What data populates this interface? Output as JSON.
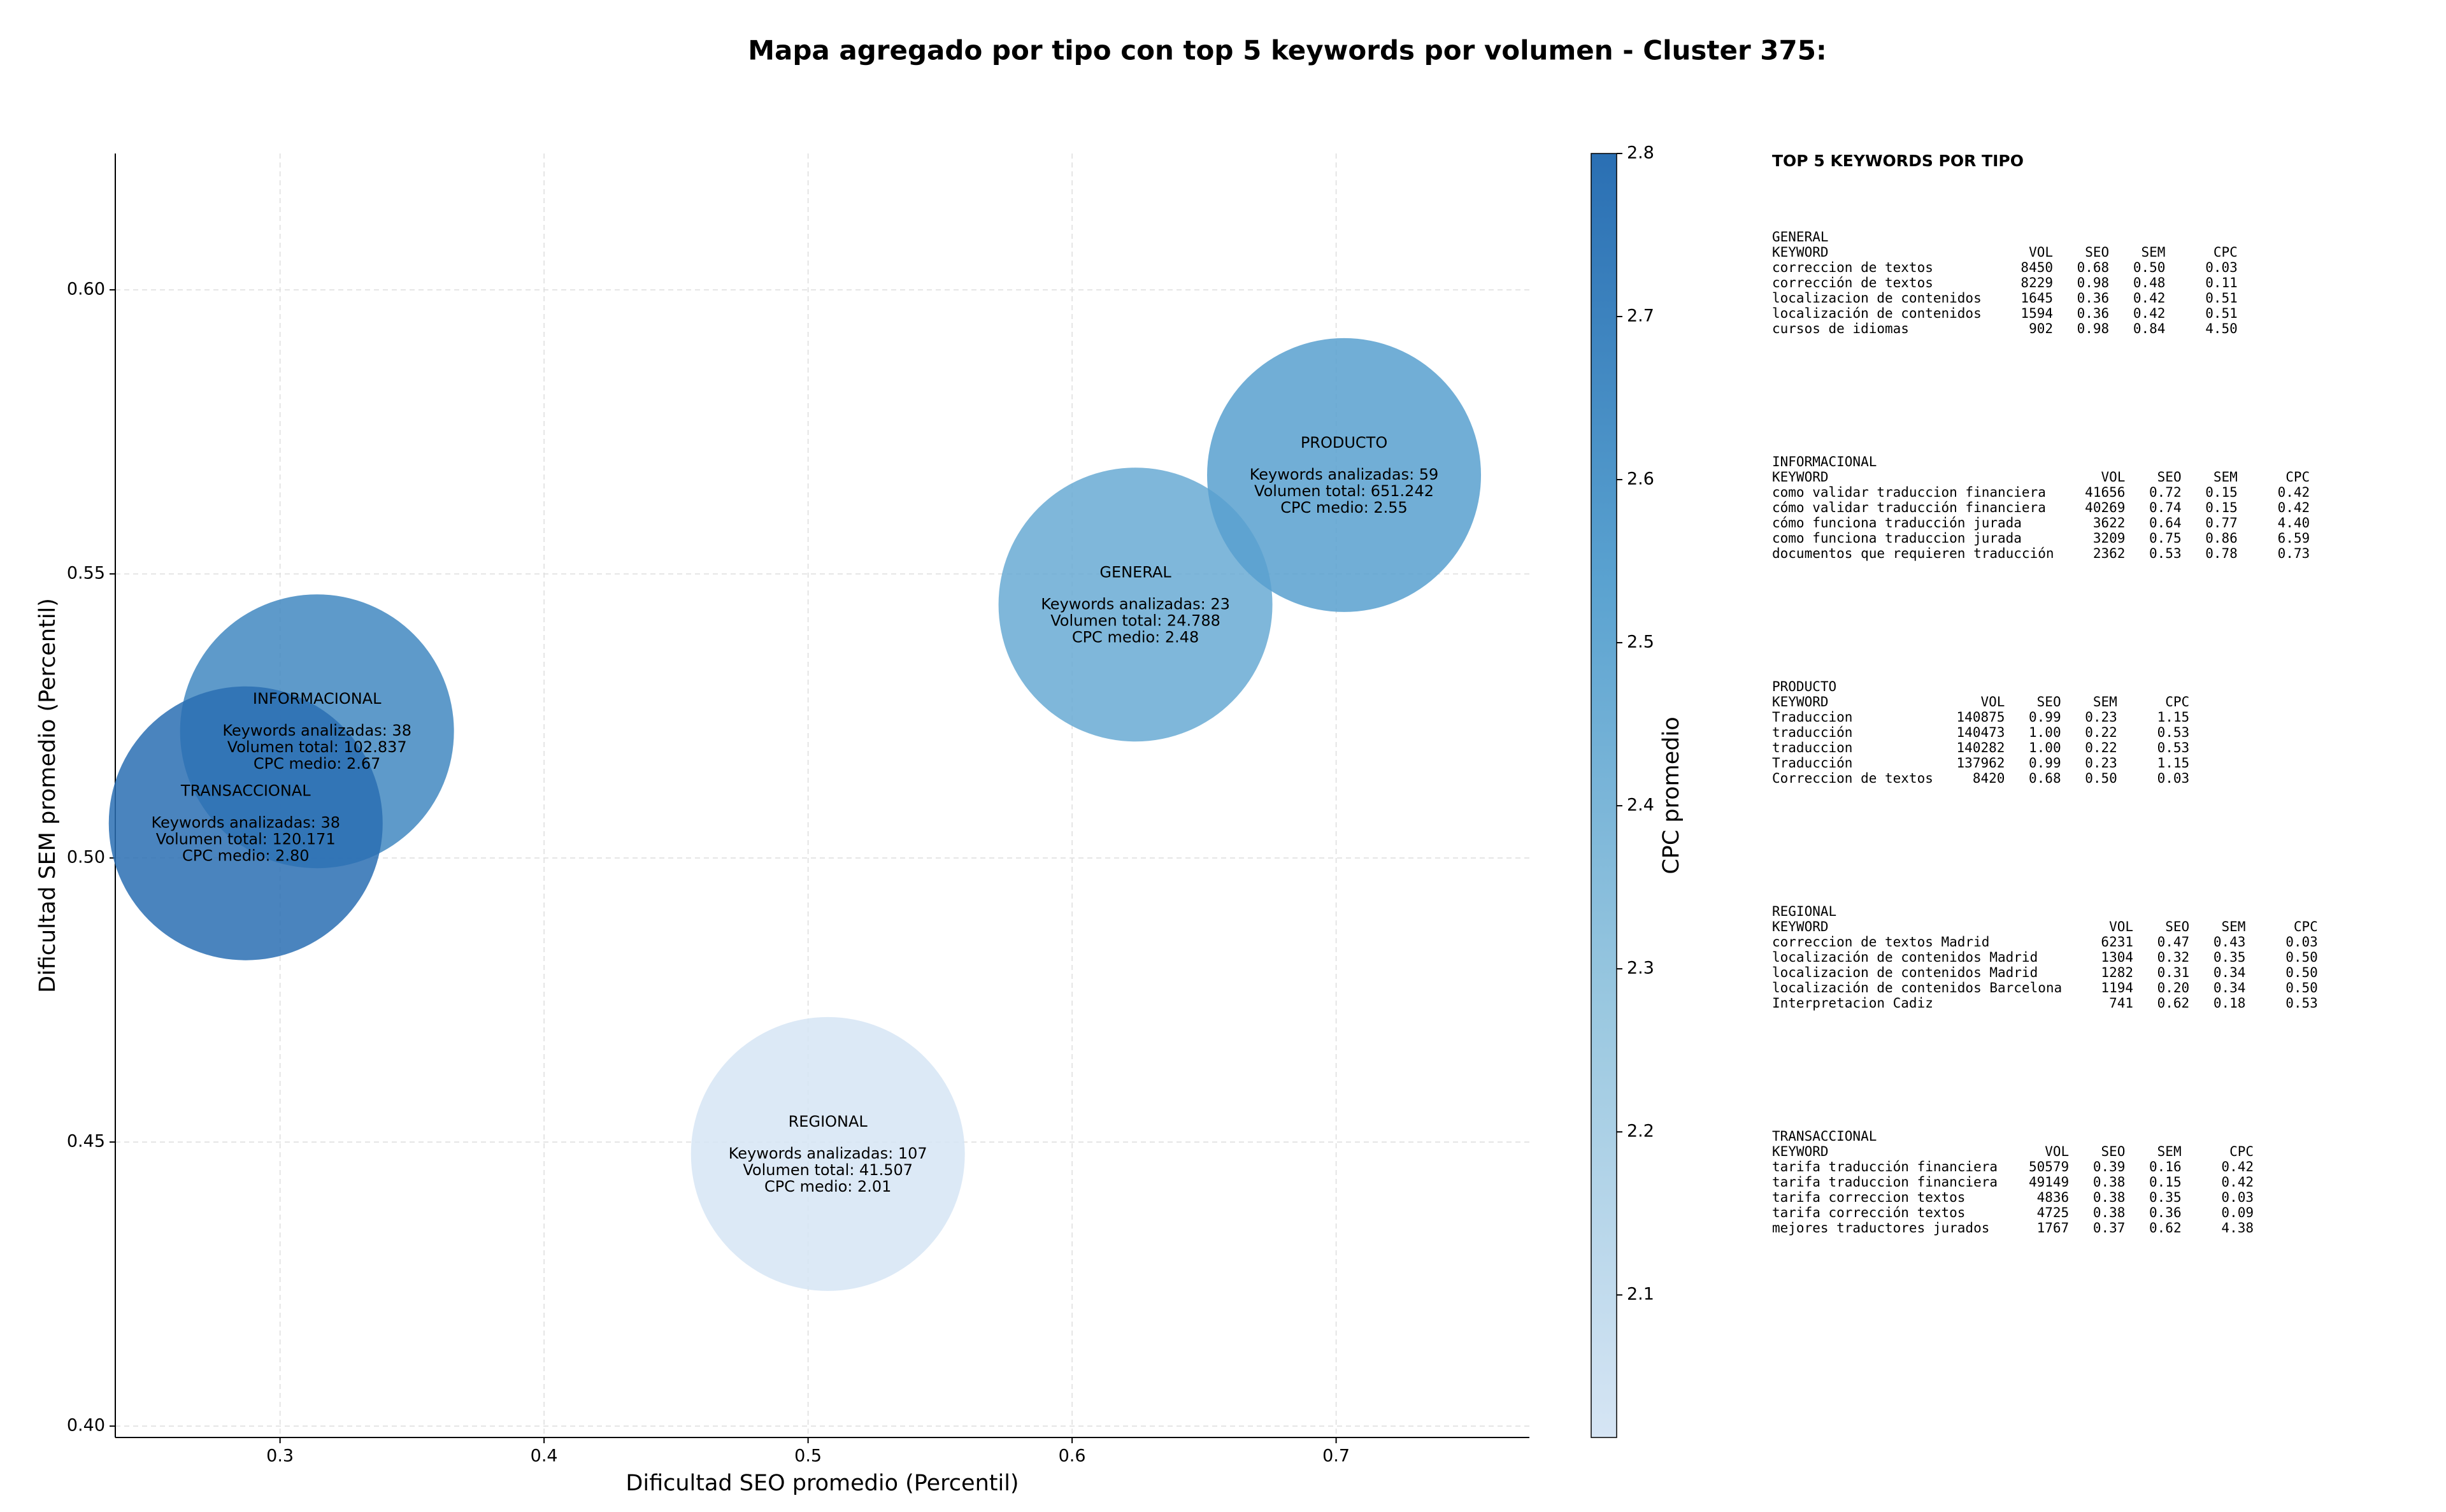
{
  "chart_data": {
    "type": "bubble",
    "title": "Mapa agregado por tipo con top 5 keywords por volumen - Cluster 375:",
    "xlabel": "Dificultad SEO promedio (Percentil)",
    "ylabel": "Dificultad SEM promedio (Percentil)",
    "xlim": [
      0.2376,
      0.7732
    ],
    "xticks": [
      0.3,
      0.4,
      0.5,
      0.6,
      0.7
    ],
    "ylim": [
      0.398,
      0.624
    ],
    "yticks": [
      {
        "value": 0.4,
        "label": "0.40"
      },
      {
        "value": 0.45,
        "label": "0.45"
      },
      {
        "value": 0.5,
        "label": "0.50"
      },
      {
        "value": 0.55,
        "label": "0.55"
      },
      {
        "value": 0.6,
        "label": "0.60"
      }
    ],
    "grid": true,
    "categories": [
      "REGIONAL",
      "GENERAL",
      "PRODUCTO",
      "INFORMACIONAL",
      "TRANSACCIONAL"
    ],
    "x": [
      0.5075,
      0.624,
      0.703,
      0.314,
      0.287
    ],
    "values": [
      0.4479,
      0.5446,
      0.5674,
      0.5223,
      0.5061
    ],
    "color_values": [
      2.01,
      2.48,
      2.55,
      2.67,
      2.8
    ],
    "details": [
      [
        "Keywords analizadas: 107",
        "Volumen total: 41.507",
        "CPC medio: 2.01"
      ],
      [
        "Keywords analizadas: 23",
        "Volumen total: 24.788",
        "CPC medio: 2.48"
      ],
      [
        "Keywords analizadas: 59",
        "Volumen total: 651.242",
        "CPC medio: 2.55"
      ],
      [
        "Keywords analizadas: 38",
        "Volumen total: 102.837",
        "CPC medio: 2.67"
      ],
      [
        "Keywords analizadas: 38",
        "Volumen total: 120.171",
        "CPC medio: 2.80"
      ]
    ],
    "colorbar": {
      "label": "CPC promedio",
      "lim": [
        2.0126,
        2.8
      ],
      "ticks": [
        2.1,
        2.2,
        2.3,
        2.4,
        2.5,
        2.6,
        2.7,
        2.8
      ],
      "colormap": [
        "#d6e5f4",
        "#9ac8e0",
        "#5aa2d0",
        "#2a6fb3"
      ]
    }
  },
  "keyword_panel": {
    "title": "TOP 5 KEYWORDS POR TIPO",
    "tables": [
      {
        "name": "GENERAL",
        "columns": [
          "KEYWORD",
          "VOL",
          "SEO",
          "SEM",
          "CPC"
        ],
        "rows": [
          [
            "correccion de textos",
            "8450",
            "0.68",
            "0.50",
            "0.03"
          ],
          [
            "corrección de textos",
            "8229",
            "0.98",
            "0.48",
            "0.11"
          ],
          [
            "localizacion de contenidos",
            "1645",
            "0.36",
            "0.42",
            "0.51"
          ],
          [
            "localización de contenidos",
            "1594",
            "0.36",
            "0.42",
            "0.51"
          ],
          [
            "cursos de idiomas",
            "902",
            "0.98",
            "0.84",
            "4.50"
          ]
        ]
      },
      {
        "name": "INFORMACIONAL",
        "columns": [
          "KEYWORD",
          "VOL",
          "SEO",
          "SEM",
          "CPC"
        ],
        "rows": [
          [
            "como validar traduccion financiera",
            "41656",
            "0.72",
            "0.15",
            "0.42"
          ],
          [
            "cómo validar traducción financiera",
            "40269",
            "0.74",
            "0.15",
            "0.42"
          ],
          [
            "cómo funciona traducción jurada",
            "3622",
            "0.64",
            "0.77",
            "4.40"
          ],
          [
            "como funciona traduccion jurada",
            "3209",
            "0.75",
            "0.86",
            "6.59"
          ],
          [
            "documentos que requieren traducción",
            "2362",
            "0.53",
            "0.78",
            "0.73"
          ]
        ]
      },
      {
        "name": "PRODUCTO",
        "columns": [
          "KEYWORD",
          "VOL",
          "SEO",
          "SEM",
          "CPC"
        ],
        "rows": [
          [
            "Traduccion",
            "140875",
            "0.99",
            "0.23",
            "1.15"
          ],
          [
            "traducción",
            "140473",
            "1.00",
            "0.22",
            "0.53"
          ],
          [
            "traduccion",
            "140282",
            "1.00",
            "0.22",
            "0.53"
          ],
          [
            "Traducción",
            "137962",
            "0.99",
            "0.23",
            "1.15"
          ],
          [
            "Correccion de textos",
            "8420",
            "0.68",
            "0.50",
            "0.03"
          ]
        ]
      },
      {
        "name": "REGIONAL",
        "columns": [
          "KEYWORD",
          "VOL",
          "SEO",
          "SEM",
          "CPC"
        ],
        "rows": [
          [
            "correccion de textos Madrid",
            "6231",
            "0.47",
            "0.43",
            "0.03"
          ],
          [
            "localización de contenidos Madrid",
            "1304",
            "0.32",
            "0.35",
            "0.50"
          ],
          [
            "localizacion de contenidos Madrid",
            "1282",
            "0.31",
            "0.34",
            "0.50"
          ],
          [
            "localización de contenidos Barcelona",
            "1194",
            "0.20",
            "0.34",
            "0.50"
          ],
          [
            "Interpretacion Cadiz",
            "741",
            "0.62",
            "0.18",
            "0.53"
          ]
        ]
      },
      {
        "name": "TRANSACCIONAL",
        "columns": [
          "KEYWORD",
          "VOL",
          "SEO",
          "SEM",
          "CPC"
        ],
        "rows": [
          [
            "tarifa traducción financiera",
            "50579",
            "0.39",
            "0.16",
            "0.42"
          ],
          [
            "tarifa traduccion financiera",
            "49149",
            "0.38",
            "0.15",
            "0.42"
          ],
          [
            "tarifa correccion textos",
            "4836",
            "0.38",
            "0.35",
            "0.03"
          ],
          [
            "tarifa corrección textos",
            "4725",
            "0.38",
            "0.36",
            "0.09"
          ],
          [
            "mejores traductores jurados",
            "1767",
            "0.37",
            "0.62",
            "4.38"
          ]
        ]
      }
    ]
  }
}
